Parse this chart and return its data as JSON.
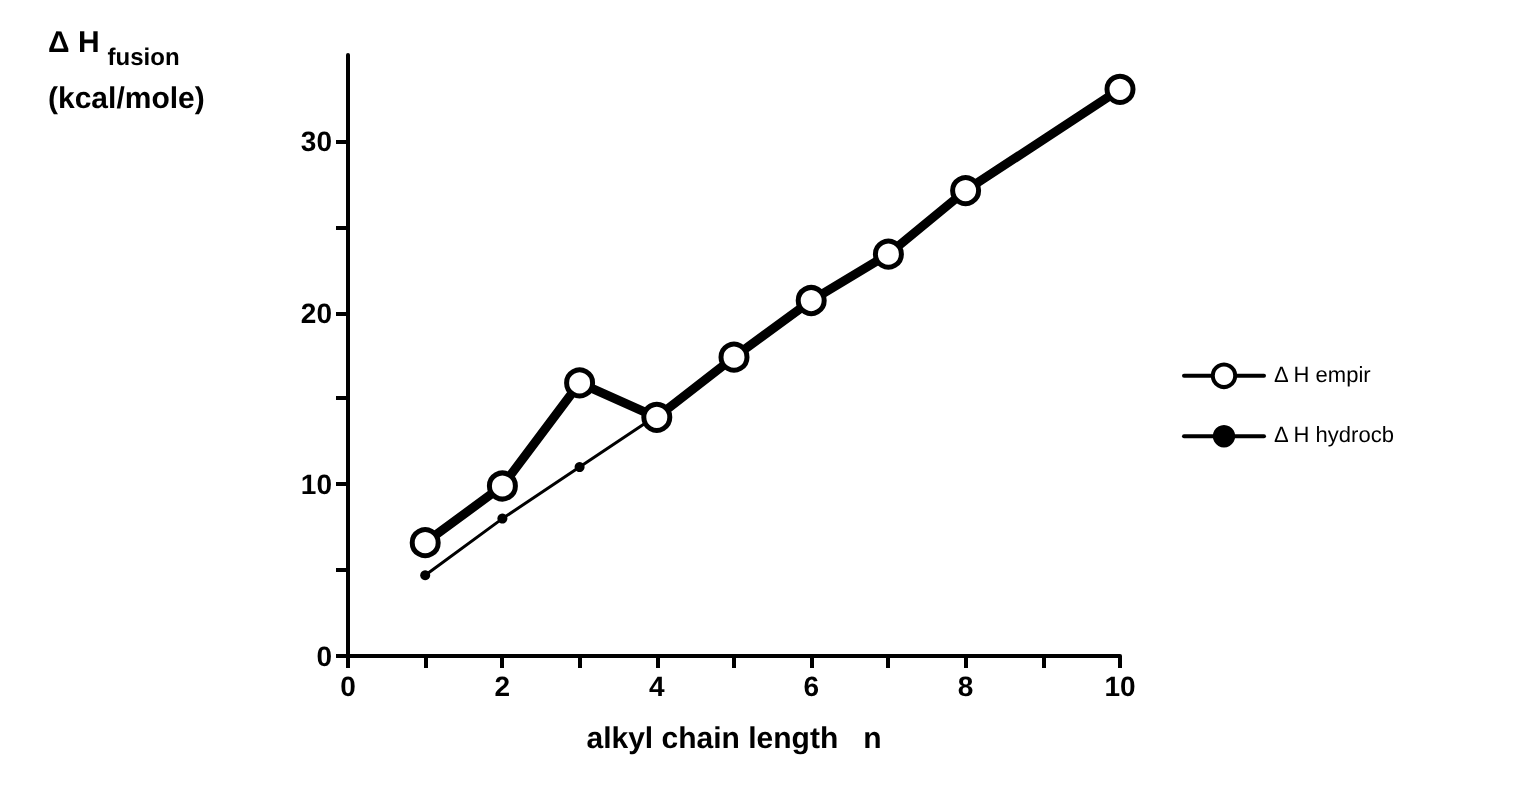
{
  "chart_data": {
    "type": "line",
    "xlabel": "alkyl chain length   n",
    "ylabel": "Δ H$_{fusion}$\n(kcal/mole)",
    "x": [
      1,
      2,
      3,
      4,
      5,
      6,
      7,
      8,
      10
    ],
    "series": [
      {
        "name": "Δ H empir",
        "color": "#000000",
        "marker": "circle",
        "values": [
          6.6,
          9.9,
          15.9,
          13.9,
          17.4,
          20.7,
          23.4,
          27.1,
          33.0
        ]
      },
      {
        "name": "Δ H hydrocb",
        "color": "#000000",
        "marker": "circle",
        "values": [
          4.7,
          8.0,
          11.0,
          14.0,
          17.3,
          20.5,
          23.4,
          27.0,
          33.0
        ]
      }
    ],
    "xlim": [
      0,
      10
    ],
    "xticks": [
      0,
      {
        "value": 1,
        "label": null
      },
      2,
      {
        "value": 3,
        "label": null
      },
      4,
      {
        "value": 5,
        "label": null
      },
      6,
      {
        "value": 7,
        "label": null
      },
      8,
      {
        "value": 9,
        "label": null
      },
      10
    ],
    "ylim": [
      0,
      35
    ],
    "yticks": [
      0,
      {
        "value": 5,
        "label": null
      },
      10,
      {
        "value": 15,
        "label": null
      },
      20,
      {
        "value": 25,
        "label": null
      },
      30
    ],
    "grid": false,
    "legend": "right",
    "line_style": "solid"
  }
}
